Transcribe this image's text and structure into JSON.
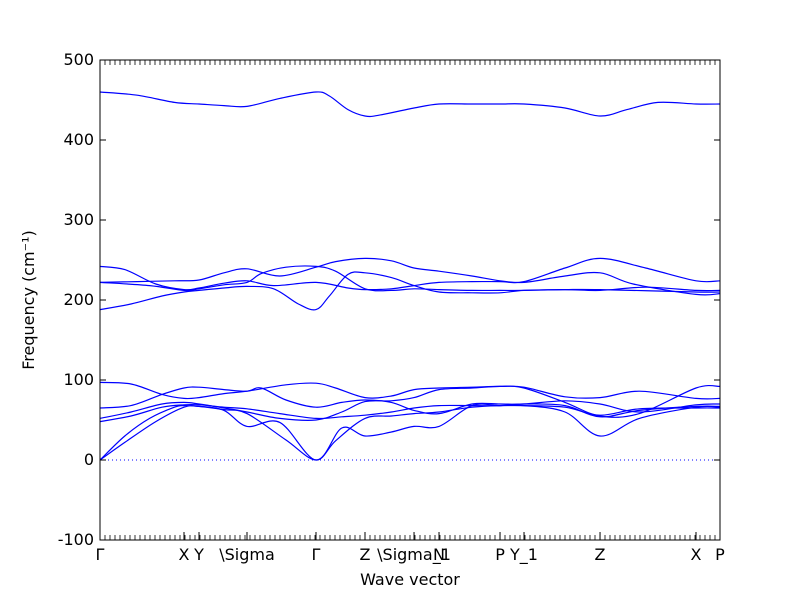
{
  "chart_data": {
    "type": "line",
    "xlabel": "Wave vector",
    "ylabel": "Frequency (cm⁻¹)",
    "ylim": [
      -100,
      500
    ],
    "yticks": [
      -100,
      0,
      100,
      200,
      300,
      400,
      500
    ],
    "xlim": [
      0,
      1
    ],
    "line_color": "#0000ff",
    "zero_line": {
      "y": 0,
      "style": "dotted",
      "color": "#0000ff"
    },
    "q_points": [
      {
        "label": "Γ",
        "x": 0.0
      },
      {
        "label": "X",
        "x": 0.1355
      },
      {
        "label": "Y",
        "x": 0.1597
      },
      {
        "label": "\\Sigma",
        "x": 0.2371
      },
      {
        "label": "Γ",
        "x": 0.3484
      },
      {
        "label": "Z",
        "x": 0.4274
      },
      {
        "label": "\\Sigma_1",
        "x": 0.5065
      },
      {
        "label": "N",
        "x": 0.5468
      },
      {
        "label": "P",
        "x": 0.6452
      },
      {
        "label": "Y_1",
        "x": 0.6839
      },
      {
        "label": "Z",
        "x": 0.8065
      },
      {
        "label": "X",
        "x": 0.9613
      },
      {
        "label": "P",
        "x": 1.0
      }
    ],
    "series": [
      {
        "values": [
          [
            0,
            460
          ],
          [
            0.06,
            456
          ],
          [
            0.12,
            447
          ],
          [
            0.1597,
            445
          ],
          [
            0.2,
            443
          ],
          [
            0.2371,
            442
          ],
          [
            0.29,
            452
          ],
          [
            0.3484,
            460
          ],
          [
            0.37,
            455
          ],
          [
            0.4,
            438
          ],
          [
            0.4274,
            430
          ],
          [
            0.45,
            431
          ],
          [
            0.5065,
            440
          ],
          [
            0.5468,
            445
          ],
          [
            0.6,
            445
          ],
          [
            0.6452,
            445
          ],
          [
            0.6839,
            445
          ],
          [
            0.75,
            440
          ],
          [
            0.8065,
            430
          ],
          [
            0.85,
            438
          ],
          [
            0.9,
            447
          ],
          [
            0.9613,
            445
          ],
          [
            1.0,
            445
          ]
        ]
      },
      {
        "values": [
          [
            0,
            242
          ],
          [
            0.04,
            238
          ],
          [
            0.09,
            220
          ],
          [
            0.1355,
            213
          ],
          [
            0.1597,
            215
          ],
          [
            0.2,
            221
          ],
          [
            0.2371,
            224
          ],
          [
            0.28,
            218
          ],
          [
            0.3484,
            222
          ],
          [
            0.4,
            215
          ],
          [
            0.4274,
            213
          ],
          [
            0.47,
            214
          ],
          [
            0.5065,
            218
          ],
          [
            0.5468,
            222
          ],
          [
            0.6,
            223
          ],
          [
            0.6452,
            223
          ],
          [
            0.6839,
            223
          ],
          [
            0.75,
            240
          ],
          [
            0.8065,
            252
          ],
          [
            0.88,
            240
          ],
          [
            0.9613,
            224
          ],
          [
            1.0,
            224
          ]
        ]
      },
      {
        "values": [
          [
            0,
            222
          ],
          [
            0.06,
            223
          ],
          [
            0.12,
            224
          ],
          [
            0.1597,
            225
          ],
          [
            0.2,
            234
          ],
          [
            0.2371,
            239
          ],
          [
            0.29,
            230
          ],
          [
            0.3484,
            241
          ],
          [
            0.38,
            248
          ],
          [
            0.4274,
            252
          ],
          [
            0.47,
            249
          ],
          [
            0.5065,
            240
          ],
          [
            0.5468,
            236
          ],
          [
            0.6,
            230
          ],
          [
            0.6452,
            224
          ],
          [
            0.6839,
            222
          ],
          [
            0.75,
            230
          ],
          [
            0.8065,
            234
          ],
          [
            0.86,
            220
          ],
          [
            0.9613,
            207
          ],
          [
            1.0,
            208
          ]
        ]
      },
      {
        "values": [
          [
            0,
            188
          ],
          [
            0.05,
            195
          ],
          [
            0.1,
            205
          ],
          [
            0.1355,
            210
          ],
          [
            0.1597,
            212
          ],
          [
            0.2,
            215
          ],
          [
            0.2371,
            217
          ],
          [
            0.28,
            214
          ],
          [
            0.32,
            195
          ],
          [
            0.3484,
            188
          ],
          [
            0.37,
            205
          ],
          [
            0.4,
            232
          ],
          [
            0.4274,
            234
          ],
          [
            0.47,
            228
          ],
          [
            0.5065,
            218
          ],
          [
            0.5468,
            210
          ],
          [
            0.6,
            209
          ],
          [
            0.6452,
            209
          ],
          [
            0.6839,
            212
          ],
          [
            0.75,
            213
          ],
          [
            0.8065,
            213
          ],
          [
            0.9613,
            210
          ],
          [
            1.0,
            210
          ]
        ]
      },
      {
        "values": [
          [
            0,
            222
          ],
          [
            0.08,
            218
          ],
          [
            0.1355,
            212
          ],
          [
            0.1597,
            214
          ],
          [
            0.2,
            219
          ],
          [
            0.2371,
            222
          ],
          [
            0.26,
            233
          ],
          [
            0.3,
            241
          ],
          [
            0.3484,
            242
          ],
          [
            0.38,
            236
          ],
          [
            0.4274,
            214
          ],
          [
            0.47,
            212
          ],
          [
            0.5065,
            214
          ],
          [
            0.5468,
            213
          ],
          [
            0.6,
            212
          ],
          [
            0.6452,
            212
          ],
          [
            0.6839,
            212
          ],
          [
            0.75,
            213
          ],
          [
            0.8065,
            212
          ],
          [
            0.88,
            216
          ],
          [
            0.9613,
            212
          ],
          [
            1.0,
            212
          ]
        ]
      },
      {
        "values": [
          [
            0,
            97
          ],
          [
            0.05,
            95
          ],
          [
            0.1,
            82
          ],
          [
            0.1355,
            77
          ],
          [
            0.1597,
            78
          ],
          [
            0.2,
            83
          ],
          [
            0.2371,
            86
          ],
          [
            0.3,
            94
          ],
          [
            0.3484,
            96
          ],
          [
            0.38,
            90
          ],
          [
            0.4274,
            78
          ],
          [
            0.47,
            80
          ],
          [
            0.5065,
            88
          ],
          [
            0.5468,
            90
          ],
          [
            0.6,
            91
          ],
          [
            0.6452,
            92
          ],
          [
            0.6839,
            91
          ],
          [
            0.75,
            79
          ],
          [
            0.8065,
            78
          ],
          [
            0.87,
            86
          ],
          [
            0.9613,
            77
          ],
          [
            1.0,
            77
          ]
        ]
      },
      {
        "values": [
          [
            0,
            65
          ],
          [
            0.05,
            68
          ],
          [
            0.1,
            82
          ],
          [
            0.1355,
            90
          ],
          [
            0.1597,
            91
          ],
          [
            0.2,
            88
          ],
          [
            0.2371,
            86
          ],
          [
            0.26,
            90
          ],
          [
            0.3,
            75
          ],
          [
            0.3484,
            66
          ],
          [
            0.39,
            72
          ],
          [
            0.4274,
            75
          ],
          [
            0.47,
            72
          ],
          [
            0.5065,
            62
          ],
          [
            0.5468,
            58
          ],
          [
            0.6,
            70
          ],
          [
            0.6452,
            70
          ],
          [
            0.6839,
            70
          ],
          [
            0.75,
            74
          ],
          [
            0.8065,
            70
          ],
          [
            0.87,
            60
          ],
          [
            0.9613,
            69
          ],
          [
            1.0,
            70
          ]
        ]
      },
      {
        "values": [
          [
            0,
            52
          ],
          [
            0.05,
            60
          ],
          [
            0.1,
            70
          ],
          [
            0.1355,
            72
          ],
          [
            0.1597,
            70
          ],
          [
            0.2,
            65
          ],
          [
            0.2371,
            60
          ],
          [
            0.29,
            52
          ],
          [
            0.3484,
            50
          ],
          [
            0.39,
            60
          ],
          [
            0.4274,
            73
          ],
          [
            0.47,
            74
          ],
          [
            0.5065,
            78
          ],
          [
            0.5468,
            88
          ],
          [
            0.6,
            90
          ],
          [
            0.6452,
            92
          ],
          [
            0.6839,
            90
          ],
          [
            0.75,
            72
          ],
          [
            0.8065,
            55
          ],
          [
            0.87,
            58
          ],
          [
            0.9613,
            90
          ],
          [
            1.0,
            92
          ]
        ]
      },
      {
        "values": [
          [
            0,
            48
          ],
          [
            0.05,
            55
          ],
          [
            0.1,
            66
          ],
          [
            0.1355,
            69
          ],
          [
            0.1597,
            69
          ],
          [
            0.2,
            66
          ],
          [
            0.2371,
            64
          ],
          [
            0.29,
            58
          ],
          [
            0.3484,
            52
          ],
          [
            0.39,
            54
          ],
          [
            0.4274,
            56
          ],
          [
            0.47,
            60
          ],
          [
            0.5065,
            65
          ],
          [
            0.5468,
            68
          ],
          [
            0.6,
            68
          ],
          [
            0.6452,
            68
          ],
          [
            0.6839,
            70
          ],
          [
            0.75,
            68
          ],
          [
            0.8065,
            54
          ],
          [
            0.87,
            62
          ],
          [
            0.9613,
            67
          ],
          [
            1.0,
            67
          ]
        ]
      },
      {
        "values": [
          [
            0,
            0
          ],
          [
            0.04,
            30
          ],
          [
            0.08,
            52
          ],
          [
            0.12,
            66
          ],
          [
            0.1355,
            68
          ],
          [
            0.1597,
            67
          ],
          [
            0.2,
            63
          ],
          [
            0.2371,
            58
          ],
          [
            0.3,
            25
          ],
          [
            0.3484,
            0
          ],
          [
            0.38,
            24
          ],
          [
            0.4274,
            52
          ],
          [
            0.47,
            55
          ],
          [
            0.5065,
            58
          ],
          [
            0.5468,
            60
          ],
          [
            0.6,
            66
          ],
          [
            0.6452,
            68
          ],
          [
            0.6839,
            68
          ],
          [
            0.75,
            60
          ],
          [
            0.8065,
            30
          ],
          [
            0.87,
            52
          ],
          [
            0.9613,
            66
          ],
          [
            1.0,
            66
          ]
        ]
      },
      {
        "values": [
          [
            0,
            0
          ],
          [
            0.04,
            22
          ],
          [
            0.09,
            48
          ],
          [
            0.1355,
            66
          ],
          [
            0.1597,
            67
          ],
          [
            0.2,
            62
          ],
          [
            0.2371,
            42
          ],
          [
            0.29,
            47
          ],
          [
            0.3484,
            0
          ],
          [
            0.39,
            40
          ],
          [
            0.4274,
            30
          ],
          [
            0.47,
            35
          ],
          [
            0.5065,
            42
          ],
          [
            0.5468,
            42
          ],
          [
            0.6,
            68
          ],
          [
            0.6452,
            68
          ],
          [
            0.6839,
            68
          ],
          [
            0.75,
            66
          ],
          [
            0.8065,
            56
          ],
          [
            0.87,
            64
          ],
          [
            0.9613,
            65
          ],
          [
            1.0,
            65
          ]
        ]
      }
    ]
  }
}
